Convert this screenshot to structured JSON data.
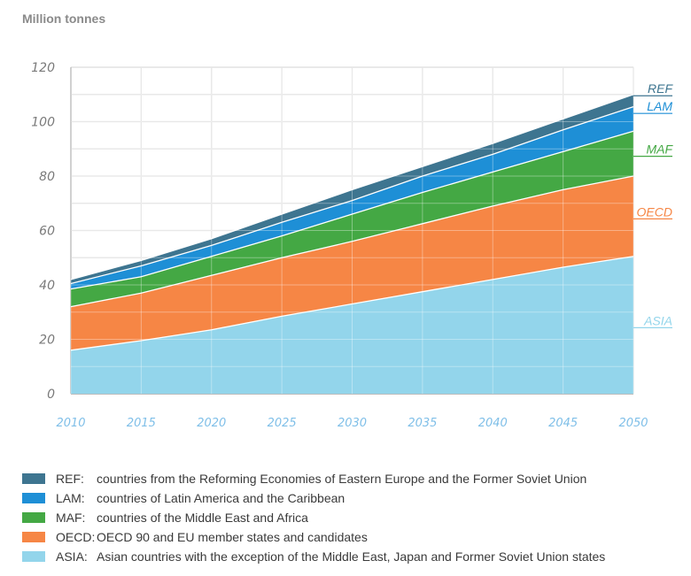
{
  "chart_data": {
    "type": "area",
    "stacked": true,
    "title": "",
    "ylabel": "Million tonnes",
    "xlabel": "",
    "x": [
      2010,
      2015,
      2020,
      2025,
      2030,
      2035,
      2040,
      2045,
      2050
    ],
    "x_tick_labels": [
      "2010",
      "2015",
      "2020",
      "2025",
      "2030",
      "2035",
      "2040",
      "2045",
      "2050"
    ],
    "ylim": [
      0,
      120
    ],
    "y_ticks": [
      0,
      20,
      40,
      60,
      80,
      100,
      120
    ],
    "y_tick_labels": [
      "0",
      "20",
      "40",
      "60",
      "80",
      "100",
      "120"
    ],
    "grid": true,
    "legend_position": "bottom",
    "series": [
      {
        "name": "ASIA",
        "color": "#93d5eb",
        "values": [
          16,
          19.5,
          23.5,
          28.5,
          33,
          37.5,
          42,
          46.5,
          50.5
        ]
      },
      {
        "name": "OECD",
        "color": "#f68645",
        "values": [
          16,
          17.5,
          20,
          21.5,
          23,
          25,
          27,
          28.5,
          29.5
        ]
      },
      {
        "name": "MAF",
        "color": "#44a844",
        "values": [
          6.5,
          6,
          7,
          8,
          10,
          11.5,
          12.5,
          14,
          16.5
        ]
      },
      {
        "name": "LAM",
        "color": "#1e8fd6",
        "values": [
          2,
          4,
          4,
          5,
          5,
          6,
          6.5,
          8,
          9
        ]
      },
      {
        "name": "REF",
        "color": "#3e7590",
        "values": [
          1.5,
          2,
          2.5,
          3,
          4,
          3.5,
          4,
          4,
          4.5
        ]
      }
    ],
    "end_labels": [
      {
        "name": "REF",
        "color": "#3e7590"
      },
      {
        "name": "LAM",
        "color": "#1e8fd6"
      },
      {
        "name": "MAF",
        "color": "#44a844"
      },
      {
        "name": "OECD",
        "color": "#f68645"
      },
      {
        "name": "ASIA",
        "color": "#93d5eb"
      }
    ]
  },
  "legend": [
    {
      "code": "REF:",
      "color": "#3e7590",
      "description": "countries from the Reforming Economies of Eastern Europe and the Former Soviet Union"
    },
    {
      "code": "LAM:",
      "color": "#1e8fd6",
      "description": "countries of Latin America and the Caribbean"
    },
    {
      "code": "MAF:",
      "color": "#44a844",
      "description": "countries of the Middle East and Africa"
    },
    {
      "code": "OECD:",
      "color": "#f68645",
      "description": "OECD 90 and EU member states and candidates"
    },
    {
      "code": "ASIA:",
      "color": "#93d5eb",
      "description": "Asian countries with the exception of the Middle East, Japan and Former Soviet Union states"
    }
  ]
}
